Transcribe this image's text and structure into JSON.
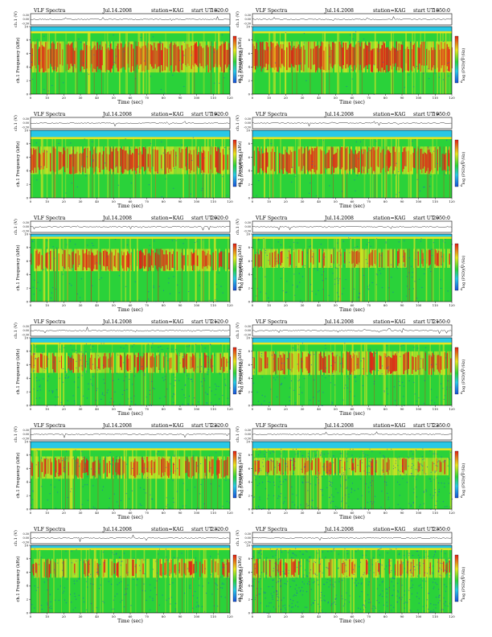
{
  "common": {
    "title": "VLF Spectra",
    "date": "Jul.14.2008",
    "station": "station=KAG",
    "start_label": "start  UT =",
    "ch_label": "ch.1 (V)",
    "ch_ticks": [
      "0.30",
      "0.00",
      "-0.30"
    ],
    "ylabel": "ch.1 Frequency (kHz)",
    "xlabel": "Time  (sec)",
    "x_ticks": [
      0,
      10,
      20,
      30,
      40,
      50,
      60,
      70,
      80,
      90,
      100,
      110,
      120
    ],
    "y_ticks": [
      0,
      2,
      4,
      6,
      8,
      10
    ],
    "colorbar_label": "log (PSD)(V²/Hz)",
    "colorbar_ticks": [
      "-2",
      "-4"
    ],
    "colors": {
      "background": "#28c8e6",
      "low": "#1a50d8",
      "mid": "#2ad23a",
      "high": "#e8e620",
      "peak": "#e21e16"
    }
  },
  "chart_data": [
    {
      "type": "heatmap",
      "start_ut": "1820:0",
      "xlim": [
        0,
        120
      ],
      "ylim": [
        0,
        10
      ],
      "band_top_khz": 9.3,
      "red_band_khz": [
        3.2,
        7.8
      ],
      "red_intensity": 0.85,
      "blue_intensity": 0.05
    },
    {
      "type": "heatmap",
      "start_ut": "1850:0",
      "xlim": [
        0,
        120
      ],
      "ylim": [
        0,
        10
      ],
      "band_top_khz": 9.3,
      "red_band_khz": [
        3.2,
        7.8
      ],
      "red_intensity": 0.85,
      "blue_intensity": 0.05
    },
    {
      "type": "heatmap",
      "start_ut": "1920:0",
      "xlim": [
        0,
        120
      ],
      "ylim": [
        0,
        10
      ],
      "band_top_khz": 9.0,
      "red_band_khz": [
        3.5,
        7.6
      ],
      "red_intensity": 0.75,
      "blue_intensity": 0.06
    },
    {
      "type": "heatmap",
      "start_ut": "1950:0",
      "xlim": [
        0,
        120
      ],
      "ylim": [
        0,
        10
      ],
      "band_top_khz": 9.0,
      "red_band_khz": [
        3.5,
        7.6
      ],
      "red_intensity": 0.75,
      "blue_intensity": 0.06
    },
    {
      "type": "heatmap",
      "start_ut": "2020:0",
      "xlim": [
        0,
        120
      ],
      "ylim": [
        0,
        10
      ],
      "band_top_khz": 9.6,
      "red_band_khz": [
        4.5,
        7.8
      ],
      "red_intensity": 0.6,
      "blue_intensity": 0.1
    },
    {
      "type": "heatmap",
      "start_ut": "2050:0",
      "xlim": [
        0,
        120
      ],
      "ylim": [
        0,
        10
      ],
      "band_top_khz": 9.6,
      "red_band_khz": [
        5.0,
        7.8
      ],
      "red_intensity": 0.35,
      "blue_intensity": 0.2
    },
    {
      "type": "heatmap",
      "start_ut": "2120:0",
      "xlim": [
        0,
        120
      ],
      "ylim": [
        0,
        10
      ],
      "band_top_khz": 9.3,
      "red_band_khz": [
        4.8,
        7.8
      ],
      "red_intensity": 0.5,
      "blue_intensity": 0.3
    },
    {
      "type": "heatmap",
      "start_ut": "2150:0",
      "xlim": [
        0,
        120
      ],
      "ylim": [
        0,
        10
      ],
      "band_top_khz": 9.3,
      "red_band_khz": [
        4.5,
        8.0
      ],
      "red_intensity": 0.55,
      "blue_intensity": 0.2
    },
    {
      "type": "heatmap",
      "start_ut": "2220:0",
      "xlim": [
        0,
        120
      ],
      "ylim": [
        0,
        10
      ],
      "band_top_khz": 9.0,
      "red_band_khz": [
        4.5,
        7.8
      ],
      "red_intensity": 0.5,
      "blue_intensity": 0.15
    },
    {
      "type": "heatmap",
      "start_ut": "2250:0",
      "xlim": [
        0,
        120
      ],
      "ylim": [
        0,
        10
      ],
      "band_top_khz": 9.0,
      "red_band_khz": [
        5.0,
        7.6
      ],
      "red_intensity": 0.35,
      "blue_intensity": 0.45
    },
    {
      "type": "heatmap",
      "start_ut": "2320:0",
      "xlim": [
        0,
        120
      ],
      "ylim": [
        0,
        10
      ],
      "band_top_khz": 9.6,
      "red_band_khz": [
        5.2,
        8.0
      ],
      "red_intensity": 0.3,
      "blue_intensity": 0.25
    },
    {
      "type": "heatmap",
      "start_ut": "2350:0",
      "xlim": [
        0,
        120
      ],
      "ylim": [
        0,
        10
      ],
      "band_top_khz": 9.6,
      "red_band_khz": [
        5.2,
        8.0
      ],
      "red_intensity": 0.3,
      "blue_intensity": 0.6
    }
  ]
}
